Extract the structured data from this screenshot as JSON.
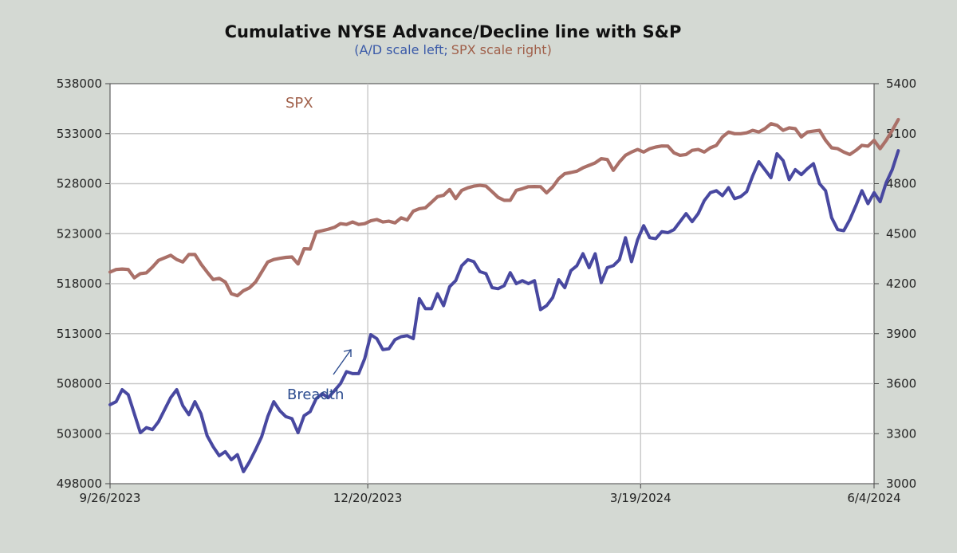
{
  "chart_data": {
    "type": "line",
    "title": "Cumulative NYSE Advance/Decline line with S&P",
    "subtitle": {
      "open": "(",
      "left_part": "A/D scale left",
      "sep": ";",
      "right_part": "SPX scale right",
      "close": ")"
    },
    "x_ticks": [
      "9/26/2023",
      "12/20/2023",
      "3/19/2024",
      "6/4/2024"
    ],
    "xlim": [
      "2023-09-26",
      "2024-06-04"
    ],
    "y_left": {
      "ylim": [
        498000,
        538000
      ],
      "ticks": [
        "498000",
        "503000",
        "508000",
        "513000",
        "518000",
        "523000",
        "528000",
        "533000",
        "538000"
      ]
    },
    "y_right": {
      "ylim": [
        3000,
        5400
      ],
      "ticks": [
        "3000",
        "3300",
        "3600",
        "3900",
        "4200",
        "4500",
        "4800",
        "5100",
        "5400"
      ]
    },
    "grid": true,
    "annotations": {
      "spx": "SPX",
      "breadth": "Breadth"
    },
    "colors": {
      "breadth": "#4848a0",
      "spx": "#aa7068",
      "subtitle_left": "#3a5aa8",
      "subtitle_right": "#a0604a",
      "annot_spx": "#a0604a",
      "annot_breadth": "#2e4d90"
    },
    "series": [
      {
        "axis": "left",
        "points": [
          [
            "2023-09-26",
            505900
          ],
          [
            "2023-09-28",
            506200
          ],
          [
            "2023-09-30",
            507400
          ],
          [
            "2023-10-02",
            506900
          ],
          [
            "2023-10-04",
            505000
          ],
          [
            "2023-10-06",
            503100
          ],
          [
            "2023-10-08",
            503600
          ],
          [
            "2023-10-10",
            503400
          ],
          [
            "2023-10-12",
            504200
          ],
          [
            "2023-10-14",
            505400
          ],
          [
            "2023-10-16",
            506600
          ],
          [
            "2023-10-18",
            507400
          ],
          [
            "2023-10-20",
            505800
          ],
          [
            "2023-10-22",
            504900
          ],
          [
            "2023-10-24",
            506200
          ],
          [
            "2023-10-26",
            505000
          ],
          [
            "2023-10-28",
            502800
          ],
          [
            "2023-10-30",
            501700
          ],
          [
            "2023-11-01",
            500800
          ],
          [
            "2023-11-03",
            501200
          ],
          [
            "2023-11-05",
            500400
          ],
          [
            "2023-11-07",
            500900
          ],
          [
            "2023-11-09",
            499200
          ],
          [
            "2023-11-11",
            500200
          ],
          [
            "2023-11-13",
            501400
          ],
          [
            "2023-11-15",
            502700
          ],
          [
            "2023-11-17",
            504700
          ],
          [
            "2023-11-19",
            506200
          ],
          [
            "2023-11-21",
            505300
          ],
          [
            "2023-11-23",
            504700
          ],
          [
            "2023-11-25",
            504500
          ],
          [
            "2023-11-27",
            503100
          ],
          [
            "2023-11-29",
            504800
          ],
          [
            "2023-12-01",
            505200
          ],
          [
            "2023-12-03",
            506500
          ],
          [
            "2023-12-05",
            507000
          ],
          [
            "2023-12-07",
            506600
          ],
          [
            "2023-12-09",
            507300
          ],
          [
            "2023-12-11",
            508000
          ],
          [
            "2023-12-13",
            509200
          ],
          [
            "2023-12-15",
            509000
          ],
          [
            "2023-12-17",
            509000
          ],
          [
            "2023-12-19",
            510500
          ],
          [
            "2023-12-21",
            512900
          ],
          [
            "2023-12-23",
            512500
          ],
          [
            "2023-12-25",
            511400
          ],
          [
            "2023-12-27",
            511500
          ],
          [
            "2023-12-29",
            512400
          ],
          [
            "2023-12-31",
            512700
          ],
          [
            "2024-01-02",
            512800
          ],
          [
            "2024-01-04",
            512500
          ],
          [
            "2024-01-06",
            516500
          ],
          [
            "2024-01-08",
            515500
          ],
          [
            "2024-01-10",
            515500
          ],
          [
            "2024-01-12",
            517000
          ],
          [
            "2024-01-14",
            515800
          ],
          [
            "2024-01-16",
            517700
          ],
          [
            "2024-01-18",
            518300
          ],
          [
            "2024-01-20",
            519800
          ],
          [
            "2024-01-22",
            520400
          ],
          [
            "2024-01-24",
            520200
          ],
          [
            "2024-01-26",
            519200
          ],
          [
            "2024-01-28",
            519000
          ],
          [
            "2024-01-30",
            517600
          ],
          [
            "2024-02-01",
            517500
          ],
          [
            "2024-02-03",
            517800
          ],
          [
            "2024-02-05",
            519100
          ],
          [
            "2024-02-07",
            518000
          ],
          [
            "2024-02-09",
            518300
          ],
          [
            "2024-02-11",
            518000
          ],
          [
            "2024-02-13",
            518300
          ],
          [
            "2024-02-15",
            515400
          ],
          [
            "2024-02-17",
            515800
          ],
          [
            "2024-02-19",
            516600
          ],
          [
            "2024-02-21",
            518400
          ],
          [
            "2024-02-23",
            517600
          ],
          [
            "2024-02-25",
            519300
          ],
          [
            "2024-02-27",
            519800
          ],
          [
            "2024-02-29",
            521000
          ],
          [
            "2024-03-02",
            519600
          ],
          [
            "2024-03-04",
            521000
          ],
          [
            "2024-03-06",
            518100
          ],
          [
            "2024-03-08",
            519600
          ],
          [
            "2024-03-10",
            519800
          ],
          [
            "2024-03-12",
            520400
          ],
          [
            "2024-03-14",
            522600
          ],
          [
            "2024-03-16",
            520200
          ],
          [
            "2024-03-18",
            522400
          ],
          [
            "2024-03-20",
            523800
          ],
          [
            "2024-03-22",
            522600
          ],
          [
            "2024-03-24",
            522500
          ],
          [
            "2024-03-26",
            523200
          ],
          [
            "2024-03-28",
            523100
          ],
          [
            "2024-03-30",
            523400
          ],
          [
            "2024-04-01",
            524200
          ],
          [
            "2024-04-03",
            525000
          ],
          [
            "2024-04-05",
            524200
          ],
          [
            "2024-04-07",
            525000
          ],
          [
            "2024-04-09",
            526300
          ],
          [
            "2024-04-11",
            527100
          ],
          [
            "2024-04-13",
            527300
          ],
          [
            "2024-04-15",
            526800
          ],
          [
            "2024-04-17",
            527600
          ],
          [
            "2024-04-19",
            526500
          ],
          [
            "2024-04-21",
            526700
          ],
          [
            "2024-04-23",
            527200
          ],
          [
            "2024-04-25",
            528800
          ],
          [
            "2024-04-27",
            530200
          ],
          [
            "2024-04-29",
            529400
          ],
          [
            "2024-05-01",
            528600
          ],
          [
            "2024-05-03",
            531000
          ],
          [
            "2024-05-05",
            530300
          ],
          [
            "2024-05-07",
            528400
          ],
          [
            "2024-05-09",
            529400
          ],
          [
            "2024-05-11",
            528900
          ],
          [
            "2024-05-13",
            529500
          ],
          [
            "2024-05-15",
            530000
          ],
          [
            "2024-05-17",
            528000
          ],
          [
            "2024-05-19",
            527300
          ],
          [
            "2024-05-21",
            524600
          ],
          [
            "2024-05-23",
            523400
          ],
          [
            "2024-05-25",
            523300
          ],
          [
            "2024-05-27",
            524400
          ],
          [
            "2024-05-29",
            525800
          ],
          [
            "2024-05-31",
            527300
          ],
          [
            "2024-06-02",
            526000
          ],
          [
            "2024-06-04",
            527100
          ],
          [
            "2024-06-06",
            526200
          ],
          [
            "2024-06-08",
            528100
          ],
          [
            "2024-06-10",
            529400
          ],
          [
            "2024-06-12",
            531300
          ]
        ]
      },
      {
        "axis": "right",
        "points": [
          [
            "2023-09-26",
            4270
          ],
          [
            "2023-09-28",
            4285
          ],
          [
            "2023-09-30",
            4288
          ],
          [
            "2023-10-02",
            4285
          ],
          [
            "2023-10-04",
            4235
          ],
          [
            "2023-10-06",
            4260
          ],
          [
            "2023-10-08",
            4265
          ],
          [
            "2023-10-10",
            4300
          ],
          [
            "2023-10-12",
            4340
          ],
          [
            "2023-10-14",
            4355
          ],
          [
            "2023-10-16",
            4370
          ],
          [
            "2023-10-18",
            4345
          ],
          [
            "2023-10-20",
            4330
          ],
          [
            "2023-10-22",
            4375
          ],
          [
            "2023-10-24",
            4375
          ],
          [
            "2023-10-26",
            4318
          ],
          [
            "2023-10-28",
            4270
          ],
          [
            "2023-10-30",
            4225
          ],
          [
            "2023-11-01",
            4232
          ],
          [
            "2023-11-03",
            4210
          ],
          [
            "2023-11-05",
            4140
          ],
          [
            "2023-11-07",
            4128
          ],
          [
            "2023-11-09",
            4158
          ],
          [
            "2023-11-11",
            4175
          ],
          [
            "2023-11-13",
            4210
          ],
          [
            "2023-11-15",
            4270
          ],
          [
            "2023-11-17",
            4330
          ],
          [
            "2023-11-19",
            4345
          ],
          [
            "2023-11-21",
            4352
          ],
          [
            "2023-11-23",
            4358
          ],
          [
            "2023-11-25",
            4360
          ],
          [
            "2023-11-27",
            4318
          ],
          [
            "2023-11-29",
            4410
          ],
          [
            "2023-12-01",
            4408
          ],
          [
            "2023-12-03",
            4510
          ],
          [
            "2023-12-05",
            4518
          ],
          [
            "2023-12-07",
            4527
          ],
          [
            "2023-12-09",
            4538
          ],
          [
            "2023-12-11",
            4560
          ],
          [
            "2023-12-13",
            4555
          ],
          [
            "2023-12-15",
            4570
          ],
          [
            "2023-12-17",
            4555
          ],
          [
            "2023-12-19",
            4560
          ],
          [
            "2023-12-21",
            4577
          ],
          [
            "2023-12-23",
            4585
          ],
          [
            "2023-12-25",
            4570
          ],
          [
            "2023-12-27",
            4575
          ],
          [
            "2023-12-29",
            4565
          ],
          [
            "2023-12-31",
            4595
          ],
          [
            "2024-01-02",
            4582
          ],
          [
            "2024-01-04",
            4635
          ],
          [
            "2024-01-06",
            4650
          ],
          [
            "2024-01-08",
            4655
          ],
          [
            "2024-01-10",
            4688
          ],
          [
            "2024-01-12",
            4722
          ],
          [
            "2024-01-14",
            4730
          ],
          [
            "2024-01-16",
            4765
          ],
          [
            "2024-01-18",
            4710
          ],
          [
            "2024-01-20",
            4760
          ],
          [
            "2024-01-22",
            4775
          ],
          [
            "2024-01-24",
            4785
          ],
          [
            "2024-01-26",
            4790
          ],
          [
            "2024-01-28",
            4785
          ],
          [
            "2024-01-30",
            4752
          ],
          [
            "2024-02-01",
            4718
          ],
          [
            "2024-02-03",
            4700
          ],
          [
            "2024-02-05",
            4700
          ],
          [
            "2024-02-07",
            4760
          ],
          [
            "2024-02-09",
            4770
          ],
          [
            "2024-02-11",
            4782
          ],
          [
            "2024-02-13",
            4783
          ],
          [
            "2024-02-15",
            4782
          ],
          [
            "2024-02-17",
            4745
          ],
          [
            "2024-02-19",
            4780
          ],
          [
            "2024-02-21",
            4830
          ],
          [
            "2024-02-23",
            4860
          ],
          [
            "2024-02-25",
            4867
          ],
          [
            "2024-02-27",
            4875
          ],
          [
            "2024-02-29",
            4895
          ],
          [
            "2024-03-02",
            4910
          ],
          [
            "2024-03-04",
            4925
          ],
          [
            "2024-03-06",
            4950
          ],
          [
            "2024-03-08",
            4945
          ],
          [
            "2024-03-10",
            4880
          ],
          [
            "2024-03-12",
            4930
          ],
          [
            "2024-03-14",
            4970
          ],
          [
            "2024-03-16",
            4990
          ],
          [
            "2024-03-18",
            5005
          ],
          [
            "2024-03-20",
            4990
          ],
          [
            "2024-03-22",
            5010
          ],
          [
            "2024-03-24",
            5020
          ],
          [
            "2024-03-26",
            5026
          ],
          [
            "2024-03-28",
            5025
          ],
          [
            "2024-03-30",
            4985
          ],
          [
            "2024-04-01",
            4970
          ],
          [
            "2024-04-03",
            4975
          ],
          [
            "2024-04-05",
            5000
          ],
          [
            "2024-04-07",
            5005
          ],
          [
            "2024-04-09",
            4990
          ],
          [
            "2024-04-11",
            5015
          ],
          [
            "2024-04-13",
            5030
          ],
          [
            "2024-04-15",
            5080
          ],
          [
            "2024-04-17",
            5110
          ],
          [
            "2024-04-19",
            5100
          ],
          [
            "2024-04-21",
            5100
          ],
          [
            "2024-04-23",
            5105
          ],
          [
            "2024-04-25",
            5120
          ],
          [
            "2024-04-27",
            5110
          ],
          [
            "2024-04-29",
            5130
          ],
          [
            "2024-05-01",
            5160
          ],
          [
            "2024-05-03",
            5150
          ],
          [
            "2024-05-05",
            5120
          ],
          [
            "2024-05-07",
            5135
          ],
          [
            "2024-05-09",
            5130
          ],
          [
            "2024-05-11",
            5080
          ],
          [
            "2024-05-13",
            5110
          ],
          [
            "2024-05-15",
            5115
          ],
          [
            "2024-05-17",
            5120
          ],
          [
            "2024-05-19",
            5060
          ],
          [
            "2024-05-21",
            5015
          ],
          [
            "2024-05-23",
            5010
          ],
          [
            "2024-05-25",
            4990
          ],
          [
            "2024-05-27",
            4975
          ],
          [
            "2024-05-29",
            5000
          ],
          [
            "2024-05-31",
            5030
          ],
          [
            "2024-06-02",
            5025
          ],
          [
            "2024-06-04",
            5060
          ],
          [
            "2024-06-06",
            5010
          ],
          [
            "2024-06-08",
            5060
          ],
          [
            "2024-06-10",
            5120
          ],
          [
            "2024-06-12",
            5185
          ]
        ]
      }
    ]
  }
}
